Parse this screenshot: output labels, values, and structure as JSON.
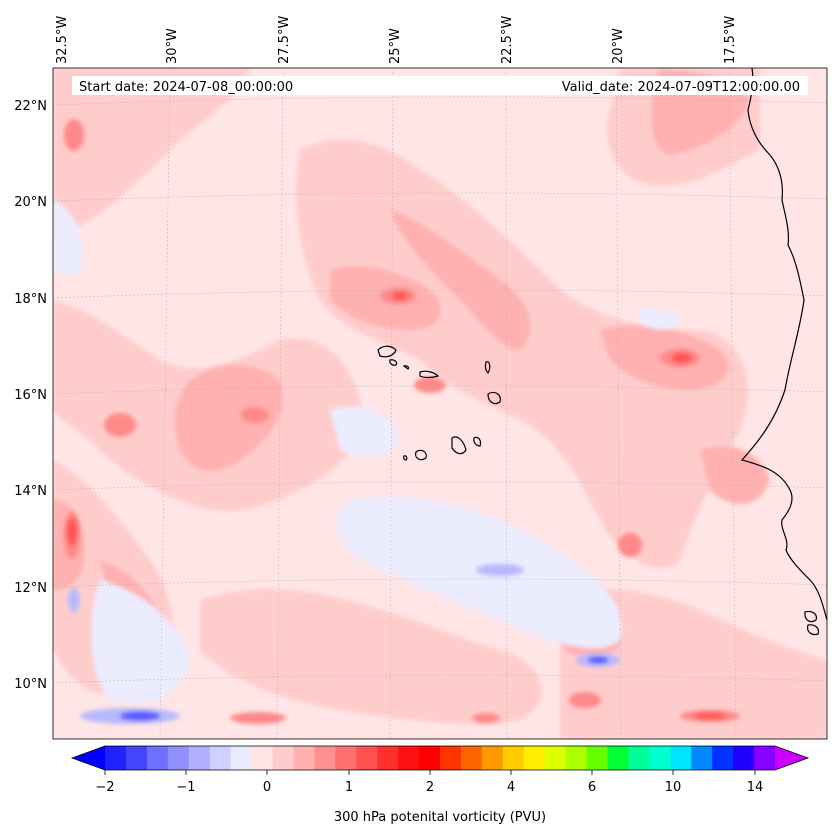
{
  "header": {
    "start_date": "Start date: 2024-07-08_00:00:00",
    "valid_date": "Valid_date: 2024-07-09T12:00:00.00"
  },
  "map": {
    "projection": "lambert-conformal",
    "extent": {
      "lon_min": -33,
      "lon_max": -15.5,
      "lat_min": 8.9,
      "lat_max": 22.8
    },
    "longitude_labels": [
      "32.5°W",
      "30°W",
      "27.5°W",
      "25°W",
      "22.5°W",
      "20°W",
      "17.5°W"
    ],
    "latitude_labels": [
      "22°N",
      "20°N",
      "18°N",
      "16°N",
      "14°N",
      "12°N",
      "10°N"
    ],
    "gridlines": true,
    "field": "300 hPa potential vorticity",
    "background_fill_color": "#ffe5e5"
  },
  "colorbar": {
    "label": "300 hPa potenital vorticity (PVU)",
    "tick_labels": [
      "−2",
      "−1",
      "0",
      "1",
      "2",
      "4",
      "6",
      "10",
      "14"
    ],
    "colors": [
      "#0000ff",
      "#2222ff",
      "#4444ff",
      "#6f6fff",
      "#8f8fff",
      "#b0b0ff",
      "#d0d0ff",
      "#ececff",
      "#ffe5e5",
      "#ffcccc",
      "#ffb0b0",
      "#ff9090",
      "#ff7070",
      "#ff5050",
      "#ff3030",
      "#ff1010",
      "#ff0000",
      "#ff3300",
      "#ff6600",
      "#ff9900",
      "#ffcc00",
      "#ffee00",
      "#ddff00",
      "#aaff00",
      "#66ff00",
      "#00ff33",
      "#00ff99",
      "#00ffcc",
      "#00e5ff",
      "#0088ff",
      "#0033ff",
      "#2200ff",
      "#8800ff",
      "#cc00ff"
    ],
    "extend": "both"
  }
}
